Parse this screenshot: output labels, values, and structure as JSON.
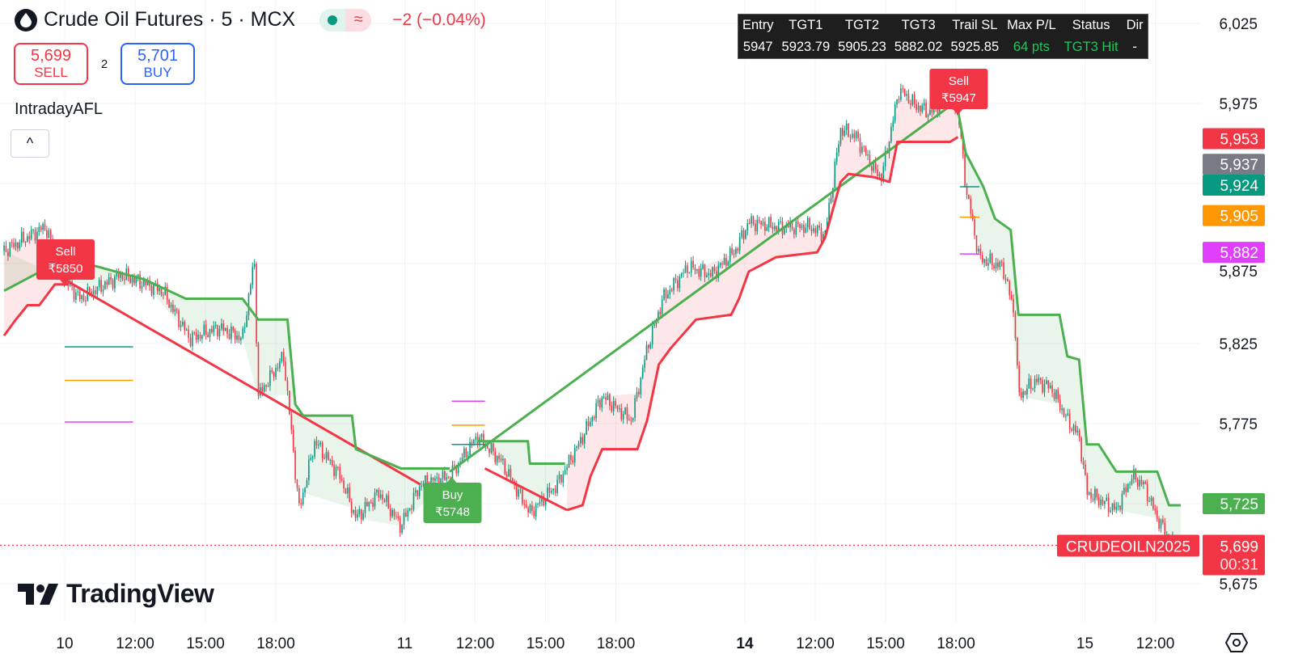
{
  "header": {
    "title": "Crude Oil Futures · 5 · MCX",
    "change": "−2 (−0.04%)",
    "market_status_icon": "green-dot-icon",
    "approx_icon": "≈"
  },
  "trade": {
    "sell_price": "5,699",
    "sell_label": "SELL",
    "spread": "2",
    "buy_price": "5,701",
    "buy_label": "BUY"
  },
  "indicator": {
    "name": "IntradayAFL",
    "collapse_icon": "^"
  },
  "table": {
    "headers": [
      "Entry",
      "TGT1",
      "TGT2",
      "TGT3",
      "Trail SL",
      "Max P/L",
      "Status",
      "Dir"
    ],
    "values": [
      "5947",
      "5923.79",
      "5905.23",
      "5882.02",
      "5925.85",
      "64 pts",
      "TGT3 Hit",
      "-"
    ]
  },
  "branding": {
    "logo_text": "TradingView"
  },
  "chart_data": {
    "type": "candlestick",
    "symbol_label": "CRUDEOILN2025",
    "ylim": [
      5650,
      6035
    ],
    "y_ticks": [
      "6,025",
      "5,975",
      "5,875",
      "5,825",
      "5,775",
      "5,675"
    ],
    "y_tick_values": [
      6025,
      5975,
      5875,
      5825,
      5775,
      5675
    ],
    "grid_values": [
      6025,
      5975,
      5925,
      5875,
      5825,
      5775,
      5725,
      5675
    ],
    "x_ticks": [
      {
        "label": "10",
        "time": "10 09:00",
        "bold": false
      },
      {
        "label": "12:00",
        "time": "10 12:00",
        "bold": false
      },
      {
        "label": "15:00",
        "time": "10 15:00",
        "bold": false
      },
      {
        "label": "18:00",
        "time": "10 18:00",
        "bold": false
      },
      {
        "label": "11",
        "time": "11 09:00",
        "bold": false
      },
      {
        "label": "12:00",
        "time": "11 12:00",
        "bold": false
      },
      {
        "label": "15:00",
        "time": "11 15:00",
        "bold": false
      },
      {
        "label": "18:00",
        "time": "11 18:00",
        "bold": false
      },
      {
        "label": "14",
        "time": "14 09:00",
        "bold": true
      },
      {
        "label": "12:00",
        "time": "14 12:00",
        "bold": false
      },
      {
        "label": "15:00",
        "time": "14 15:00",
        "bold": false
      },
      {
        "label": "18:00",
        "time": "14 18:00",
        "bold": false
      },
      {
        "label": "15",
        "time": "15 09:00",
        "bold": false
      },
      {
        "label": "12:00",
        "time": "15 12:00",
        "bold": false
      }
    ],
    "price_path": [
      [
        "9 20:55",
        5883
      ],
      [
        "9 22:40",
        5898
      ],
      [
        "10 09:00",
        5865
      ],
      [
        "10 09:40",
        5853
      ],
      [
        "10 11:25",
        5868
      ],
      [
        "10 13:10",
        5858
      ],
      [
        "10 14:20",
        5828
      ],
      [
        "10 15:35",
        5835
      ],
      [
        "10 16:35",
        5828
      ],
      [
        "10 17:05",
        5878
      ],
      [
        "10 17:15",
        5792
      ],
      [
        "10 18:20",
        5817
      ],
      [
        "10 19:00",
        5721
      ],
      [
        "10 19:40",
        5764
      ],
      [
        "10 20:45",
        5742
      ],
      [
        "10 21:25",
        5716
      ],
      [
        "10 22:25",
        5732
      ],
      [
        "10 23:20",
        5711
      ],
      [
        "11 09:40",
        5737
      ],
      [
        "11 10:55",
        5742
      ],
      [
        "11 12:05",
        5767
      ],
      [
        "11 13:05",
        5752
      ],
      [
        "11 14:20",
        5719
      ],
      [
        "11 15:30",
        5737
      ],
      [
        "11 16:35",
        5767
      ],
      [
        "11 17:25",
        5792
      ],
      [
        "11 18:40",
        5777
      ],
      [
        "11 19:20",
        5822
      ],
      [
        "11 20:00",
        5853
      ],
      [
        "11 21:05",
        5873
      ],
      [
        "11 22:05",
        5868
      ],
      [
        "11 23:05",
        5883
      ],
      [
        "14 09:10",
        5901
      ],
      [
        "14 10:20",
        5898
      ],
      [
        "14 11:45",
        5898
      ],
      [
        "14 12:25",
        5893
      ],
      [
        "14 13:05",
        5959
      ],
      [
        "14 13:45",
        5954
      ],
      [
        "14 14:30",
        5934
      ],
      [
        "14 14:50",
        5929
      ],
      [
        "14 15:10",
        5954
      ],
      [
        "14 15:35",
        5984
      ],
      [
        "14 16:15",
        5974
      ],
      [
        "14 16:55",
        5969
      ],
      [
        "14 17:35",
        5979
      ],
      [
        "14 18:05",
        5971
      ],
      [
        "14 18:25",
        5923
      ],
      [
        "14 19:00",
        5878
      ],
      [
        "14 20:00",
        5873
      ],
      [
        "14 20:30",
        5843
      ],
      [
        "14 20:40",
        5792
      ],
      [
        "14 21:25",
        5802
      ],
      [
        "14 22:05",
        5797
      ],
      [
        "14 22:45",
        5777
      ],
      [
        "14 23:15",
        5767
      ],
      [
        "15 09:05",
        5732
      ],
      [
        "15 10:20",
        5721
      ],
      [
        "15 11:00",
        5742
      ],
      [
        "15 11:30",
        5737
      ],
      [
        "15 12:05",
        5716
      ],
      [
        "15 12:45",
        5699
      ]
    ],
    "bands": [
      {
        "color": "#4caf50",
        "fill": "rgba(76,175,80,0.12)",
        "points": [
          [
            "9 20:55",
            5858
          ],
          [
            "10 09:00",
            5878
          ],
          [
            "10 10:25",
            5873
          ],
          [
            "10 12:25",
            5865
          ],
          [
            "10 14:10",
            5853
          ],
          [
            "10 16:35",
            5853
          ],
          [
            "10 17:15",
            5840
          ],
          [
            "10 18:30",
            5840
          ],
          [
            "10 18:50",
            5787
          ],
          [
            "10 19:10",
            5780
          ],
          [
            "10 21:15",
            5780
          ],
          [
            "10 21:25",
            5759
          ],
          [
            "10 23:20",
            5747
          ],
          [
            "11 10:55",
            5747
          ]
        ]
      },
      {
        "color": "#4caf50",
        "fill": "rgba(76,175,80,0.12)",
        "points": [
          [
            "11 12:05",
            5764
          ],
          [
            "11 14:15",
            5764
          ],
          [
            "11 14:20",
            5750
          ],
          [
            "11 15:50",
            5750
          ]
        ]
      },
      {
        "color": "#4caf50",
        "fill": "rgba(76,175,80,0.12)",
        "points": [
          [
            "14 18:05",
            5971
          ],
          [
            "14 18:25",
            5944
          ],
          [
            "14 19:10",
            5923
          ],
          [
            "14 19:40",
            5903
          ],
          [
            "14 20:20",
            5896
          ],
          [
            "14 20:40",
            5843
          ],
          [
            "14 22:25",
            5843
          ],
          [
            "14 22:45",
            5817
          ],
          [
            "14 23:15",
            5815
          ],
          [
            "15 09:05",
            5762
          ],
          [
            "15 09:35",
            5762
          ],
          [
            "15 10:20",
            5745
          ],
          [
            "15 12:05",
            5745
          ],
          [
            "15 12:35",
            5724
          ],
          [
            "15 13:05",
            5724
          ]
        ]
      },
      {
        "color": "#f23645",
        "fill": "rgba(242,54,69,0.12)",
        "points": [
          [
            "9 20:55",
            5830
          ],
          [
            "9 21:25",
            5840
          ],
          [
            "9 21:55",
            5849
          ],
          [
            "9 22:25",
            5849
          ],
          [
            "9 23:05",
            5862
          ],
          [
            "10 09:10",
            5862
          ]
        ]
      },
      {
        "color": "#f23645",
        "fill": "rgba(242,54,69,0.12)",
        "points": [
          [
            "11 15:55",
            5721
          ],
          [
            "11 16:35",
            5724
          ],
          [
            "11 16:55",
            5742
          ],
          [
            "11 17:25",
            5759
          ],
          [
            "11 18:55",
            5759
          ],
          [
            "11 19:20",
            5777
          ],
          [
            "11 19:50",
            5812
          ],
          [
            "11 20:20",
            5822
          ],
          [
            "11 21:25",
            5840
          ],
          [
            "11 22:55",
            5843
          ],
          [
            "11 23:15",
            5853
          ],
          [
            "14 09:10",
            5870
          ],
          [
            "14 10:20",
            5879
          ],
          [
            "14 12:05",
            5882
          ],
          [
            "14 12:25",
            5891
          ],
          [
            "14 13:05",
            5926
          ],
          [
            "14 13:25",
            5931
          ],
          [
            "14 14:30",
            5929
          ],
          [
            "14 15:10",
            5926
          ],
          [
            "14 15:30",
            5951
          ],
          [
            "14 17:45",
            5951
          ],
          [
            "14 18:05",
            5954
          ]
        ]
      }
    ],
    "signal_lines": [
      {
        "color": "#f23645",
        "from": [
          "10 09:00",
          5865
        ],
        "to": [
          "11 09:40",
          5737
        ]
      },
      {
        "color": "#f23645",
        "from": [
          "11 12:25",
          5747
        ],
        "to": [
          "11 15:55",
          5721
        ]
      },
      {
        "color": "#4caf50",
        "from": [
          "11 10:55",
          5745
        ],
        "to": [
          "14 18:05",
          5977
        ]
      }
    ],
    "target_lines": [
      {
        "color": "#089981",
        "price": 5823,
        "from": "10 09:00",
        "to": "10 11:55"
      },
      {
        "color": "#ff9800",
        "price": 5802,
        "from": "10 09:00",
        "to": "10 11:55"
      },
      {
        "color": "#e040fb",
        "price": 5776,
        "from": "10 09:00",
        "to": "10 11:55"
      },
      {
        "color": "#e040fb",
        "price": 5789,
        "from": "11 11:00",
        "to": "11 12:25"
      },
      {
        "color": "#ff9800",
        "price": 5774,
        "from": "11 11:00",
        "to": "11 12:25"
      },
      {
        "color": "#089981",
        "price": 5762,
        "from": "11 11:00",
        "to": "11 12:25"
      },
      {
        "color": "#089981",
        "price": 5923,
        "from": "14 18:10",
        "to": "14 19:00"
      },
      {
        "color": "#ff9800",
        "price": 5904,
        "from": "14 18:10",
        "to": "14 19:00"
      },
      {
        "color": "#e040fb",
        "price": 5881,
        "from": "14 18:10",
        "to": "14 19:00"
      }
    ],
    "signals": [
      {
        "type": "Sell",
        "label": "Sell",
        "price_label": "₹5850",
        "time": "10 09:00",
        "color": "#f23645"
      },
      {
        "type": "Buy",
        "label": "Buy",
        "price_label": "₹5748",
        "time": "11 11:00",
        "color": "#4caf50"
      },
      {
        "type": "Sell",
        "label": "Sell",
        "price_label": "₹5947",
        "time": "14 18:05",
        "color": "#f23645"
      }
    ],
    "price_badges": [
      {
        "label": "5,953",
        "value": 5953,
        "color": "#f23645"
      },
      {
        "label": "5,937",
        "value": 5937,
        "color": "#787b86"
      },
      {
        "label": "5,924",
        "value": 5924,
        "color": "#089981"
      },
      {
        "label": "5,905",
        "value": 5905,
        "color": "#ff9800"
      },
      {
        "label": "5,882",
        "value": 5882,
        "color": "#e040fb"
      },
      {
        "label": "5,725",
        "value": 5725,
        "color": "#4caf50"
      }
    ],
    "last_price": {
      "label": "5,699",
      "value": 5699,
      "countdown": "00:31",
      "color": "#f23645"
    },
    "colors": {
      "up": "#089981",
      "down": "#f23645"
    }
  }
}
